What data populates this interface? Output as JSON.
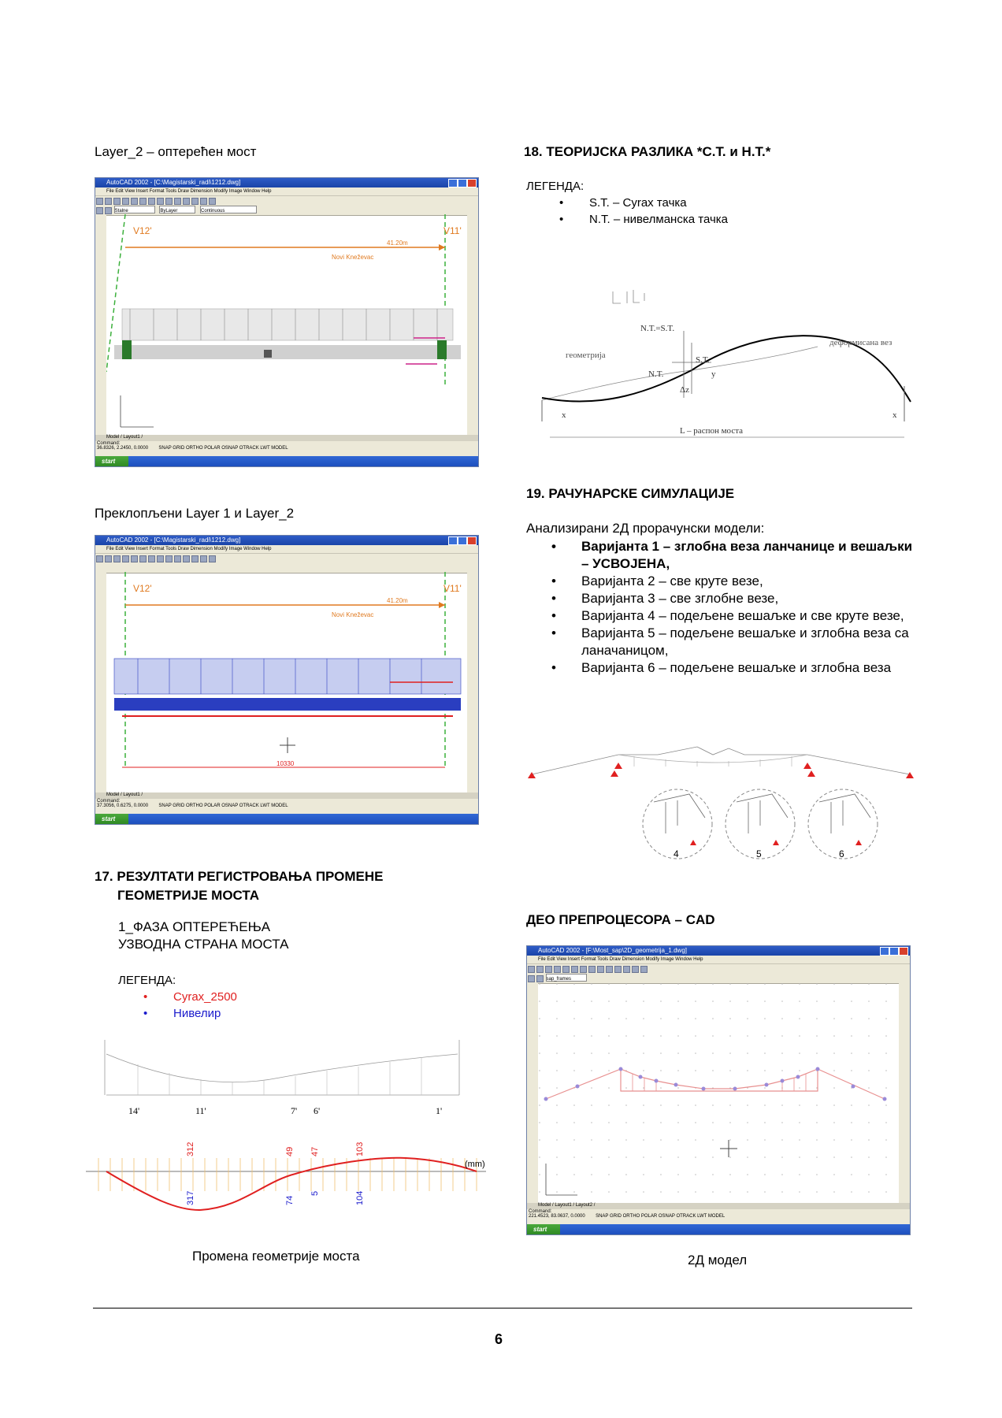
{
  "left": {
    "caption1": "Layer_2 – оптерећен мост",
    "caption2": "Преклопљени Layer 1 и Layer_2",
    "cad1": {
      "title": "AutoCAD 2002 - [C:\\Magistarski_radi\\1212.dwg]",
      "menu": "File  Edit  View  Insert  Format  Tools  Draw  Dimension  Modify  Image  Window  Help",
      "layer": "Stalne",
      "linetype": "Continuous",
      "color": "ByLayer",
      "label_left": "V12'",
      "label_right": "V11'",
      "dim": "41.20m",
      "name": "Novi Kneževac",
      "tabs": "Model / Layout1 /",
      "command": "Command:",
      "coords": "36.8326, 2.2450, 0.0000",
      "status": "SNAP GRID ORTHO POLAR OSNAP OTRACK LWT MODEL",
      "start": "start"
    },
    "cad2": {
      "title": "AutoCAD 2002 - [C:\\Magistarski_radi\\1212.dwg]",
      "menu": "File  Edit  View  Insert  Format  Tools  Draw  Dimension  Modify  Image  Window  Help",
      "label_left": "V12'",
      "label_right": "V11'",
      "dim": "41.20m",
      "name": "Novi Kneževac",
      "dim2": "10330",
      "tabs": "Model / Layout1 /",
      "command": "Command:",
      "coords": "37.3056, 0.6275, 0.0000",
      "status": "SNAP GRID ORTHO POLAR OSNAP OTRACK LWT MODEL",
      "start": "start"
    },
    "section17": {
      "heading_line1": "17. РЕЗУЛТАТИ РЕГИСТРОВАЊА ПРОМЕНЕ",
      "heading_line2": "ГЕОМЕТРИЈЕ МОСТА",
      "phase_line1": "1_ФАЗА ОПТЕРЕЋЕЊА",
      "phase_line2": "УЗВОДНА СТРАНА МОСТА",
      "legend_title": "ЛЕГЕНДА:",
      "legend_items": [
        {
          "label": "Cyrax_2500",
          "color": "#e02020"
        },
        {
          "label": "Нивелир",
          "color": "#1a1acc"
        }
      ],
      "labels_top": [
        "14'",
        "11'",
        "7'",
        "6'",
        "1'"
      ],
      "red_values": [
        "312",
        "49",
        "47",
        "103"
      ],
      "blue_values": [
        "317",
        "74",
        "5",
        "104"
      ],
      "unit": "(mm)",
      "caption": "Промена геометрије моста"
    }
  },
  "right": {
    "section18": {
      "heading": "18. ТЕОРИЈСКА РАЗЛИКА *С.Т. и Н.Т.*",
      "legend_title": "ЛЕГЕНДА:",
      "legend_items": [
        "S.T. – Cyrax тачка",
        "N.T. – нивелманска тачка"
      ],
      "sketch_labels": {
        "nt": "N.T.=S.T.",
        "st": "S.T.",
        "nt2": "N.T.",
        "y": "y",
        "dy": "Δz",
        "left": "геометрија",
        "right": "деформисана вез",
        "x": "x",
        "span": "L – распон моста"
      }
    },
    "section19": {
      "heading": "19. РАЧУНАРСКЕ СИМУЛАЦИЈЕ",
      "intro": "Анализирани 2Д прорачунски модели:",
      "items": [
        {
          "text": "Варијанта 1 – зглобна веза ланчанице и вешаљки – УСВОЈЕНА,",
          "bold": true
        },
        {
          "text": "Варијанта 2 – све круте везе,",
          "bold": false
        },
        {
          "text": "Варијанта 3 – све зглобне везе,",
          "bold": false
        },
        {
          "text": "Варијанта 4 – подељене вешаљке и све круте везе,",
          "bold": false
        },
        {
          "text": "Варијанта 5 – подељене вешаљке и зглобна веза са ланачаницом,",
          "bold": false
        },
        {
          "text": "Варијанта 6 – подељене вешаљке и зглобна веза",
          "bold": false
        }
      ],
      "circle_labels": [
        "4",
        "5",
        "6"
      ]
    },
    "preproc": {
      "heading": "ДЕО ПРЕПРОЦЕСОРА – CAD",
      "cad": {
        "title": "AutoCAD 2002 - [F:\\Most_sap\\2D_geometrija_1.dwg]",
        "menu": "File  Edit  View  Insert  Format  Tools  Draw  Dimension  Modify  Image  Window  Help",
        "layer": "sap_frames",
        "tabs": "Model / Layout1 / Layout2 /",
        "command": "Command:",
        "coords": "221.4523, 83.0637, 0.0000",
        "status": "SNAP GRID ORTHO POLAR OSNAP OTRACK LWT MODEL",
        "start": "start"
      },
      "caption": "2Д модел"
    }
  },
  "page_number": "6",
  "colors": {
    "red": "#e02020",
    "blue": "#1a1acc",
    "orange": "#e07a20",
    "title_blue": "#2355c5"
  }
}
